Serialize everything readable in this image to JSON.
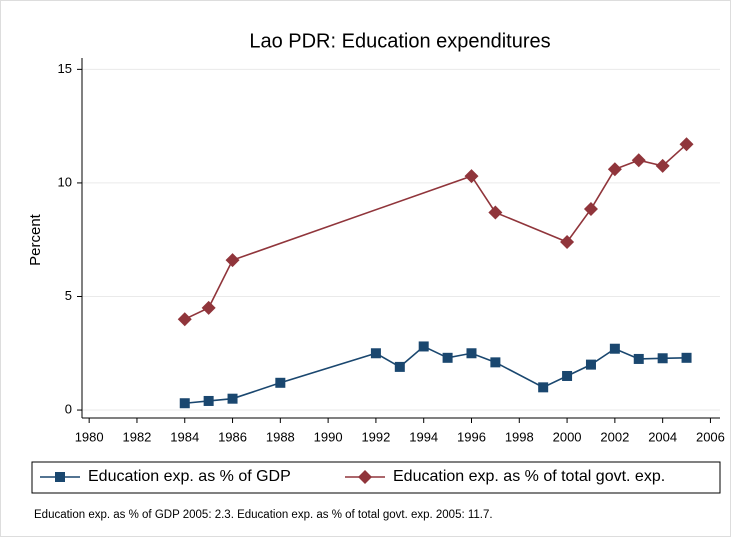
{
  "chart_data": {
    "type": "line",
    "title": "Lao PDR: Education expenditures",
    "y_label": "Percent",
    "note": "Education exp. as % of GDP 2005: 2.3. Education exp. as % of total govt. exp. 2005: 11.7.",
    "series": [
      {
        "name": "Education exp. as % of GDP",
        "color": "#1a476f",
        "marker": "square",
        "x": [
          1984,
          1985,
          1986,
          1988,
          1992,
          1993,
          1994,
          1995,
          1996,
          1997,
          1999,
          2000,
          2001,
          2002,
          2003,
          2004,
          2005
        ],
        "values": [
          0.3,
          0.4,
          0.5,
          1.2,
          2.5,
          1.9,
          2.8,
          2.3,
          2.5,
          2.1,
          1.0,
          1.5,
          2.0,
          2.7,
          2.25,
          2.28,
          2.3
        ]
      },
      {
        "name": "Education exp. as % of total govt. exp.",
        "color": "#90353b",
        "marker": "diamond",
        "x": [
          1984,
          1985,
          1986,
          1996,
          1997,
          2000,
          2001,
          2002,
          2003,
          2004,
          2005
        ],
        "values": [
          4.0,
          4.5,
          6.6,
          10.3,
          8.7,
          7.4,
          8.85,
          10.6,
          11.0,
          10.75,
          11.7
        ]
      }
    ],
    "xlim": [
      1979.7,
      2006.4
    ],
    "xticks": [
      1980,
      1982,
      1984,
      1986,
      1988,
      1990,
      1992,
      1994,
      1996,
      1998,
      2000,
      2002,
      2004,
      2006
    ],
    "ylim": [
      -0.35,
      15.5
    ],
    "yticks": [
      0,
      5,
      10,
      15
    ],
    "grid": true,
    "legend": "bottom"
  }
}
